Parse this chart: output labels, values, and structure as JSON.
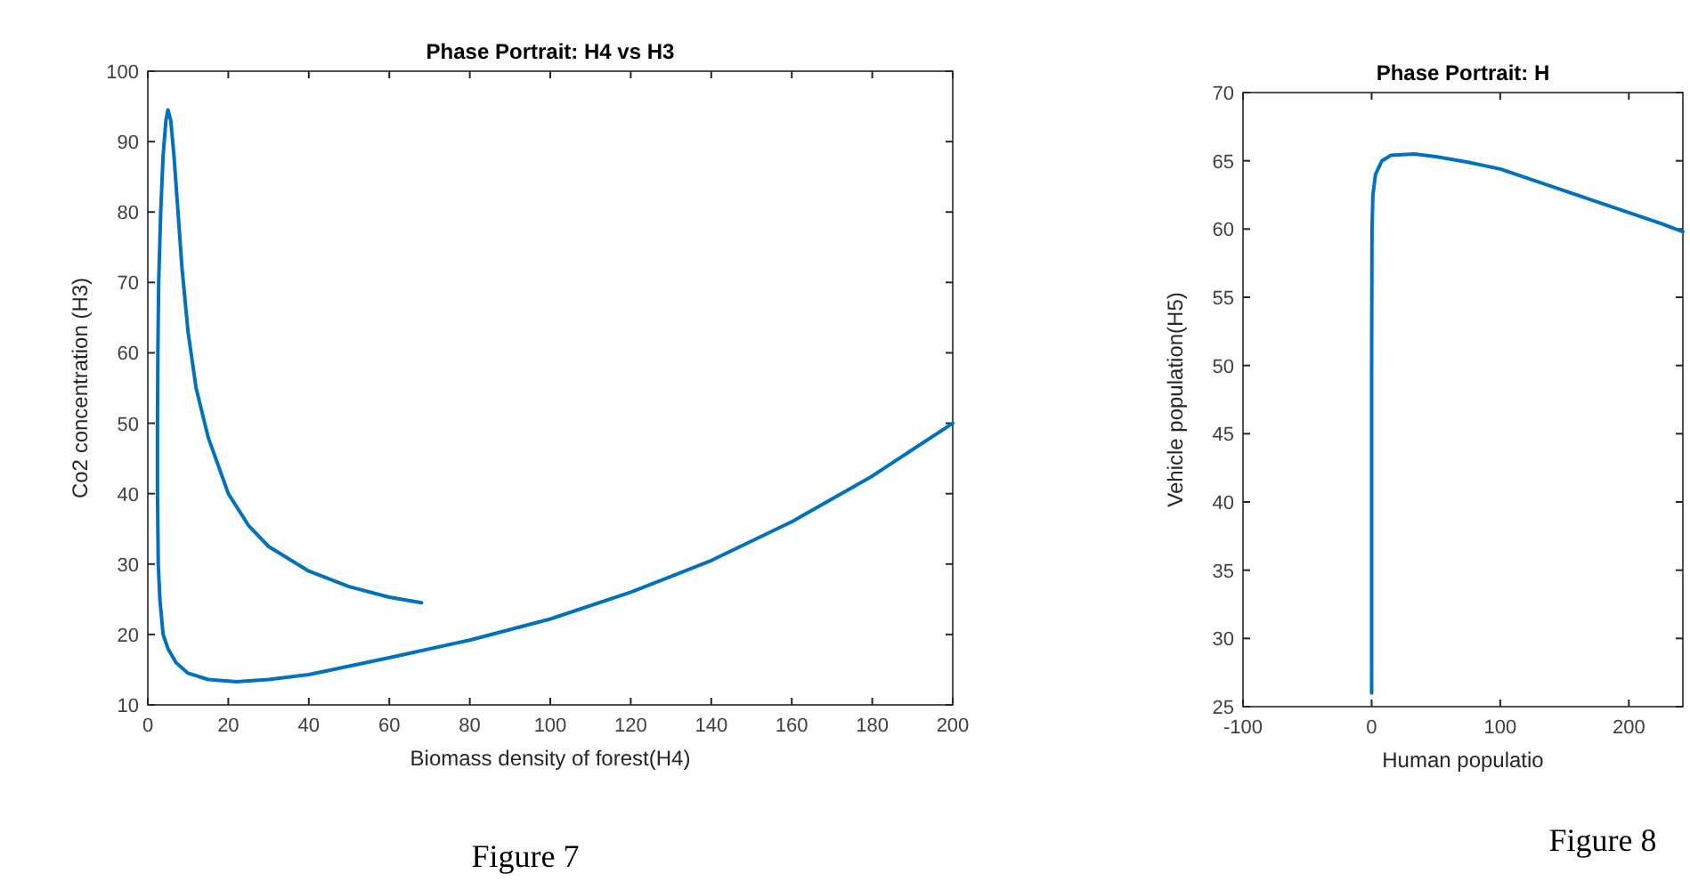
{
  "chart_data": [
    {
      "type": "line",
      "title": "Phase Portrait: H4 vs H3",
      "xlabel": "Biomass density of forest(H4)",
      "ylabel": "Co2 concentration (H3)",
      "annotations": [
        "Figure 7"
      ],
      "xlim": [
        0,
        200
      ],
      "ylim": [
        10,
        100
      ],
      "xticks": [
        0,
        20,
        40,
        60,
        80,
        100,
        120,
        140,
        160,
        180,
        200
      ],
      "yticks": [
        10,
        20,
        30,
        40,
        50,
        60,
        70,
        80,
        90,
        100
      ],
      "grid": false,
      "series": [
        {
          "color": "#0072bd",
          "x": [
            200,
            180,
            160,
            140,
            120,
            100,
            80,
            60,
            40,
            30,
            22,
            15,
            10,
            7,
            5,
            3.8,
            3,
            2.6,
            2.4,
            2.4,
            2.5,
            2.7,
            3.2,
            3.8,
            4.5,
            5,
            5.7,
            6.5,
            7.5,
            8.5,
            10,
            12,
            15,
            20,
            25,
            30,
            40,
            50,
            60,
            68
          ],
          "values": [
            50,
            42.5,
            36,
            30.5,
            26,
            22.2,
            19.2,
            16.7,
            14.3,
            13.6,
            13.3,
            13.6,
            14.5,
            16,
            18,
            20,
            25,
            30,
            40,
            50,
            60,
            70,
            80,
            88,
            93,
            94.5,
            93,
            88,
            80,
            72,
            63,
            55,
            48,
            40,
            35.5,
            32.5,
            29,
            26.8,
            25.3,
            24.5
          ]
        }
      ]
    },
    {
      "type": "line",
      "title": "Phase Portrait: H",
      "xlabel": "Human populatio",
      "ylabel": "Vehicle population(H5)",
      "annotations": [
        "Figure 8"
      ],
      "xlim": [
        -100,
        242
      ],
      "ylim": [
        25,
        70
      ],
      "xticks": [
        -100,
        0,
        100,
        200
      ],
      "yticks": [
        25,
        30,
        35,
        40,
        45,
        50,
        55,
        60,
        65,
        70
      ],
      "grid": false,
      "series": [
        {
          "color": "#0072bd",
          "x": [
            0,
            0,
            0.3,
            1,
            3,
            8,
            15,
            33,
            50,
            75,
            100,
            125,
            150,
            175,
            200,
            225,
            242
          ],
          "values": [
            26,
            50,
            60,
            62.5,
            64,
            65,
            65.4,
            65.5,
            65.3,
            64.9,
            64.4,
            63.6,
            62.8,
            62,
            61.2,
            60.4,
            59.8
          ]
        }
      ]
    }
  ]
}
